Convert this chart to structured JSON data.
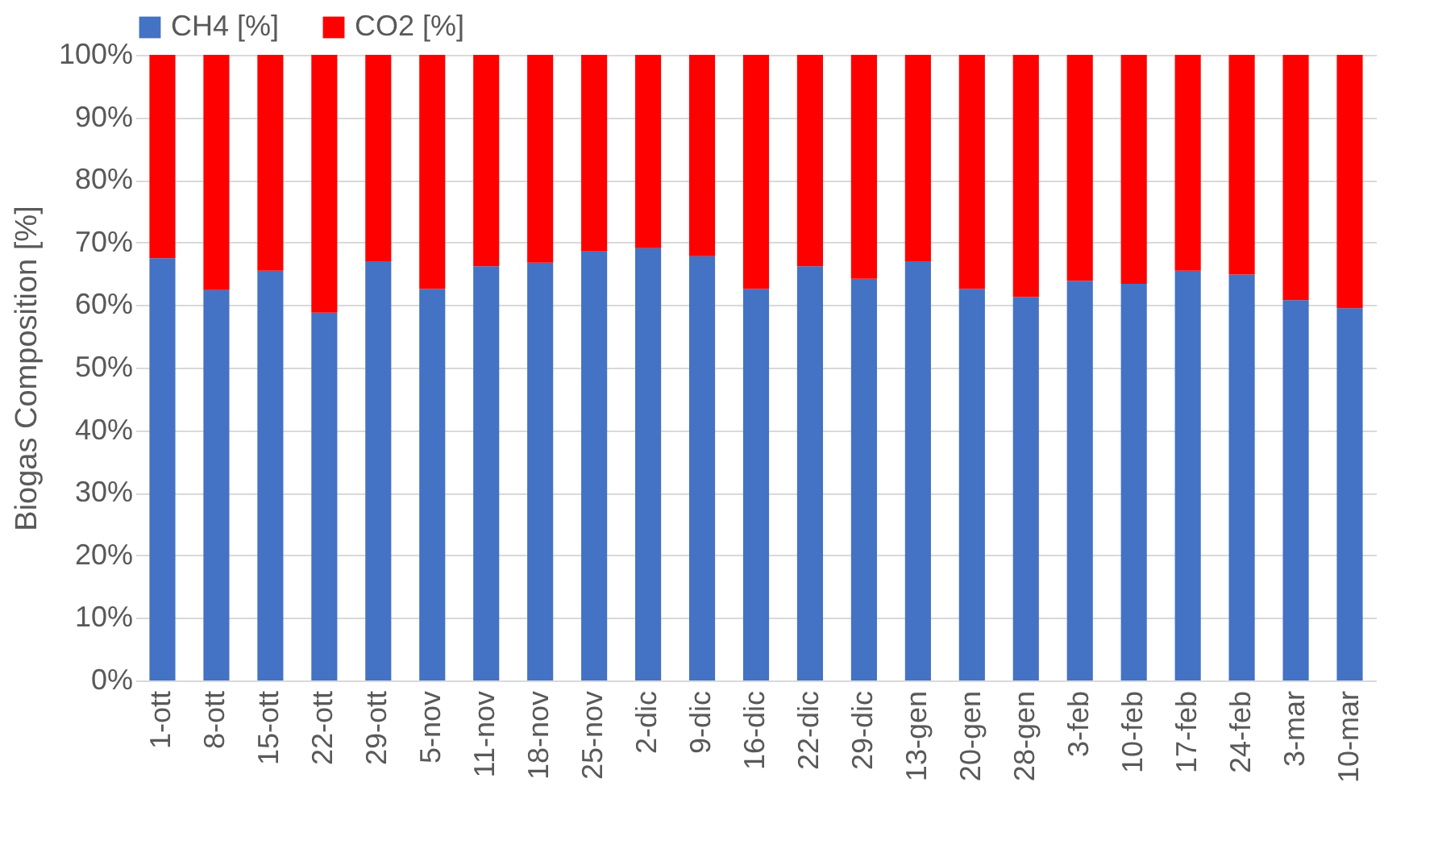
{
  "chart_data": {
    "type": "bar",
    "stacked": true,
    "ylabel": "Biogas Composition [%]",
    "categories": [
      "1-ott",
      "8-ott",
      "15-ott",
      "22-ott",
      "29-ott",
      "5-nov",
      "11-nov",
      "18-nov",
      "25-nov",
      "2-dic",
      "9-dic",
      "16-dic",
      "22-dic",
      "29-dic",
      "13-gen",
      "20-gen",
      "28-gen",
      "3-feb",
      "10-feb",
      "17-feb",
      "24-feb",
      "3-mar",
      "10-mar"
    ],
    "series": [
      {
        "name": "CH4 [%]",
        "color": "#4472c4",
        "values": [
          67.5,
          62.4,
          65.5,
          58.8,
          67.0,
          62.6,
          66.2,
          66.8,
          68.6,
          69.1,
          67.8,
          62.6,
          66.2,
          64.2,
          67.0,
          62.6,
          61.3,
          63.9,
          63.4,
          65.5,
          64.9,
          60.8,
          59.5
        ]
      },
      {
        "name": "CO2 [%]",
        "color": "#ff0000",
        "values": [
          32.5,
          37.6,
          34.5,
          41.2,
          33.0,
          37.4,
          33.8,
          33.2,
          31.4,
          30.9,
          32.2,
          37.4,
          33.8,
          35.8,
          33.0,
          37.4,
          38.7,
          36.1,
          36.6,
          34.5,
          35.1,
          39.2,
          40.5
        ]
      }
    ],
    "ylim": [
      0,
      100
    ],
    "yticks": [
      {
        "value": 0,
        "label": "0%"
      },
      {
        "value": 10,
        "label": "10%"
      },
      {
        "value": 20,
        "label": "20%"
      },
      {
        "value": 30,
        "label": "30%"
      },
      {
        "value": 40,
        "label": "40%"
      },
      {
        "value": 50,
        "label": "50%"
      },
      {
        "value": 60,
        "label": "60%"
      },
      {
        "value": 70,
        "label": "70%"
      },
      {
        "value": 80,
        "label": "80%"
      },
      {
        "value": 90,
        "label": "90%"
      },
      {
        "value": 100,
        "label": "100%"
      }
    ],
    "grid": "y",
    "legend": "top"
  }
}
